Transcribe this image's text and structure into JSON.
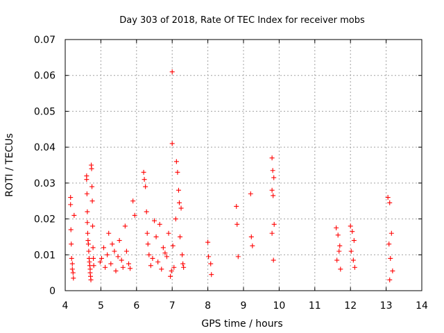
{
  "chart_data": {
    "type": "scatter",
    "title": "Day 303 of 2018, Rate Of TEC Index for receiver mobs",
    "xlabel": "GPS time / hours",
    "ylabel": "ROTI / TECUs",
    "xlim": [
      4,
      14
    ],
    "ylim": [
      0,
      0.07
    ],
    "x_ticks": [
      4,
      5,
      6,
      7,
      8,
      9,
      10,
      11,
      12,
      13,
      14
    ],
    "x_tick_labels": [
      "4",
      "5",
      "6",
      "7",
      "8",
      "9",
      "10",
      "11",
      "12",
      "13",
      "14"
    ],
    "y_ticks": [
      0,
      0.01,
      0.02,
      0.03,
      0.04,
      0.05,
      0.06,
      0.07
    ],
    "y_tick_labels": [
      "0",
      "0.01",
      "0.02",
      "0.03",
      "0.04",
      "0.05",
      "0.06",
      "0.07"
    ],
    "grid": true,
    "marker": "+",
    "color": "#ff0000",
    "series": [
      {
        "name": "ROTI",
        "x": [
          4.15,
          4.15,
          4.16,
          4.17,
          4.18,
          4.2,
          4.2,
          4.22,
          4.23,
          4.25,
          4.6,
          4.6,
          4.61,
          4.62,
          4.62,
          4.63,
          4.64,
          4.65,
          4.66,
          4.67,
          4.68,
          4.69,
          4.7,
          4.7,
          4.71,
          4.72,
          4.73,
          4.74,
          4.75,
          4.76,
          4.77,
          4.78,
          4.79,
          4.8,
          4.98,
          5.02,
          5.08,
          5.12,
          5.18,
          5.22,
          5.28,
          5.32,
          5.38,
          5.42,
          5.48,
          5.52,
          5.58,
          5.62,
          5.68,
          5.72,
          5.78,
          5.82,
          5.9,
          5.95,
          6.2,
          6.22,
          6.25,
          6.28,
          6.3,
          6.32,
          6.35,
          6.4,
          6.45,
          6.5,
          6.55,
          6.6,
          6.65,
          6.7,
          6.75,
          6.8,
          6.85,
          6.9,
          6.95,
          6.98,
          7.0,
          7.0,
          7.02,
          7.05,
          7.1,
          7.12,
          7.15,
          7.18,
          7.2,
          7.22,
          7.25,
          7.28,
          7.3,
          7.32,
          8.0,
          8.02,
          8.08,
          8.1,
          8.8,
          8.82,
          8.85,
          9.2,
          9.22,
          9.25,
          9.8,
          9.82,
          9.85,
          9.8,
          9.83,
          9.86,
          9.8,
          9.84,
          11.6,
          11.65,
          11.7,
          11.68,
          11.62,
          11.72,
          12.0,
          12.05,
          12.1,
          12.02,
          12.08,
          12.12,
          13.05,
          13.1,
          13.15,
          13.08,
          13.12,
          13.18,
          13.1
        ],
        "y": [
          0.026,
          0.024,
          0.017,
          0.013,
          0.009,
          0.0075,
          0.006,
          0.005,
          0.0035,
          0.021,
          0.032,
          0.031,
          0.027,
          0.022,
          0.019,
          0.016,
          0.014,
          0.013,
          0.011,
          0.009,
          0.008,
          0.007,
          0.006,
          0.005,
          0.004,
          0.003,
          0.035,
          0.034,
          0.029,
          0.025,
          0.018,
          0.012,
          0.009,
          0.007,
          0.008,
          0.009,
          0.012,
          0.0065,
          0.01,
          0.016,
          0.0075,
          0.013,
          0.011,
          0.0055,
          0.0095,
          0.014,
          0.0085,
          0.0065,
          0.018,
          0.011,
          0.0075,
          0.0062,
          0.025,
          0.021,
          0.033,
          0.031,
          0.029,
          0.022,
          0.016,
          0.013,
          0.01,
          0.007,
          0.009,
          0.0195,
          0.015,
          0.008,
          0.0185,
          0.006,
          0.012,
          0.0105,
          0.0095,
          0.016,
          0.004,
          0.0055,
          0.061,
          0.041,
          0.0125,
          0.0065,
          0.02,
          0.036,
          0.033,
          0.028,
          0.0245,
          0.015,
          0.023,
          0.01,
          0.0075,
          0.0065,
          0.0135,
          0.0095,
          0.0075,
          0.0045,
          0.0235,
          0.0185,
          0.0095,
          0.027,
          0.015,
          0.0125,
          0.037,
          0.0335,
          0.0315,
          0.028,
          0.0265,
          0.0185,
          0.016,
          0.0085,
          0.0175,
          0.0155,
          0.0125,
          0.011,
          0.0085,
          0.006,
          0.018,
          0.0165,
          0.014,
          0.011,
          0.0085,
          0.0065,
          0.026,
          0.0245,
          0.016,
          0.013,
          0.009,
          0.0055,
          0.003
        ]
      }
    ]
  }
}
